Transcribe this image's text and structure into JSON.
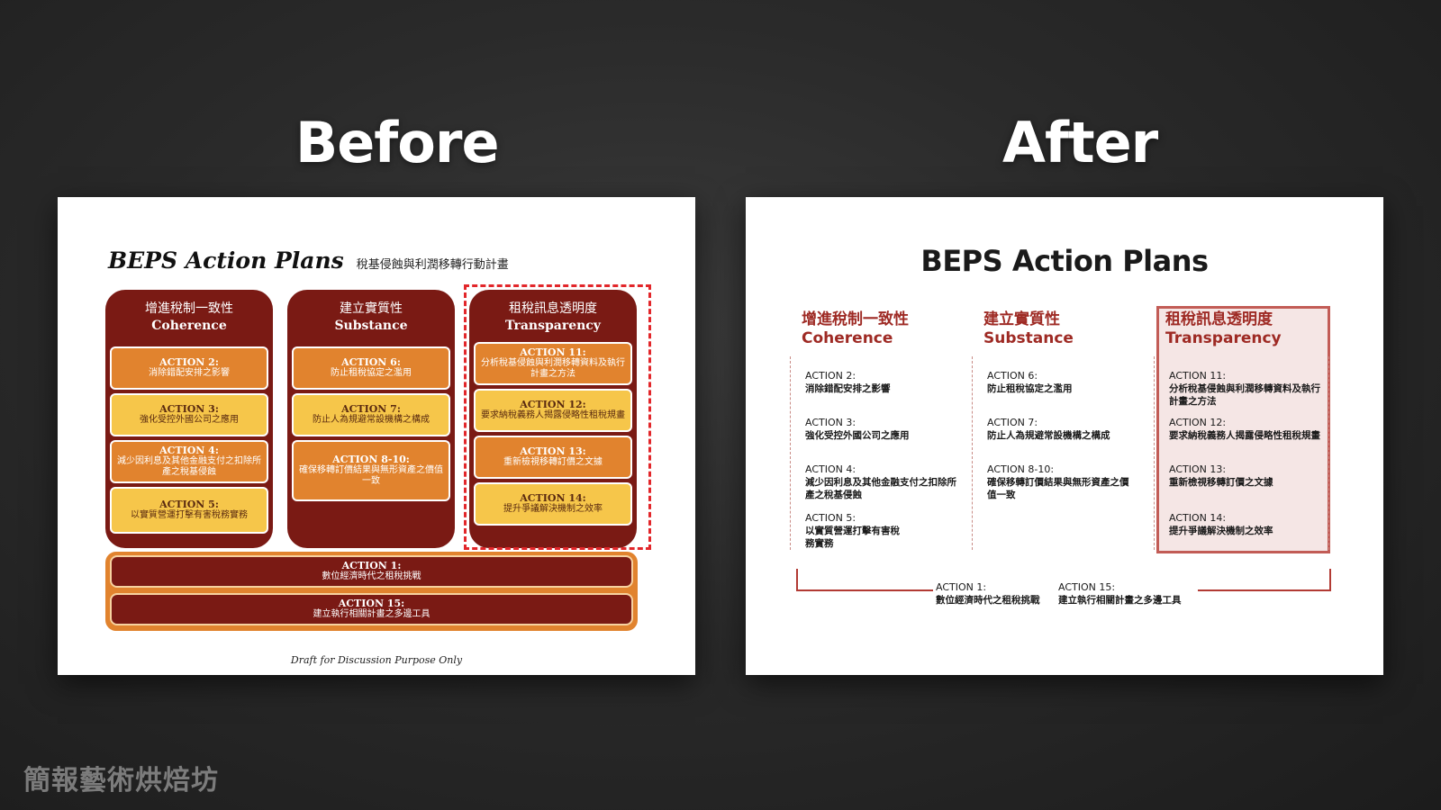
{
  "headings": {
    "before": "Before",
    "after": "After"
  },
  "before_slide": {
    "title": "BEPS Action Plans",
    "subtitle": "稅基侵蝕與利潤移轉行動計畫",
    "columns": [
      {
        "zh": "增進稅制一致性",
        "en": "Coherence",
        "actions": [
          {
            "title": "ACTION 2:",
            "desc": "消除錯配安排之影響",
            "style": "orange"
          },
          {
            "title": "ACTION 3:",
            "desc": "強化受控外國公司之應用",
            "style": "yellow"
          },
          {
            "title": "ACTION 4:",
            "desc": "減少因利息及其他金融支付之扣除所產之稅基侵蝕",
            "style": "orange"
          },
          {
            "title": "ACTION 5:",
            "desc": "以實質營運打擊有害稅務實務",
            "style": "yellow"
          }
        ]
      },
      {
        "zh": "建立實質性",
        "en": "Substance",
        "actions": [
          {
            "title": "ACTION 6:",
            "desc": "防止租稅協定之濫用",
            "style": "orange"
          },
          {
            "title": "ACTION 7:",
            "desc": "防止人為規避常設機構之構成",
            "style": "yellow"
          },
          {
            "title": "ACTION 8-10:",
            "desc": "確保移轉訂價結果與無形資產之價值一致",
            "style": "orange"
          }
        ]
      },
      {
        "zh": "租稅訊息透明度",
        "en": "Transparency",
        "actions": [
          {
            "title": "ACTION 11:",
            "desc": "分析稅基侵蝕與利潤移轉資料及執行計畫之方法",
            "style": "orange"
          },
          {
            "title": "ACTION 12:",
            "desc": "要求納稅義務人揭露侵略性租稅規畫",
            "style": "yellow"
          },
          {
            "title": "ACTION 13:",
            "desc": "重新檢視移轉訂價之文據",
            "style": "orange"
          },
          {
            "title": "ACTION 14:",
            "desc": "提升爭議解決機制之效率",
            "style": "yellow"
          }
        ]
      }
    ],
    "bottom": [
      {
        "title": "ACTION 1:",
        "desc": "數位經濟時代之租稅挑戰"
      },
      {
        "title": "ACTION 15:",
        "desc": "建立執行相關計畫之多邊工具"
      }
    ],
    "footer": "Draft for Discussion Purpose Only"
  },
  "after_slide": {
    "title": "BEPS Action Plans",
    "columns": [
      {
        "zh": "增進稅制一致性",
        "en": "Coherence",
        "actions": [
          {
            "title": "ACTION 2:",
            "desc": "消除錯配安排之影響"
          },
          {
            "title": "ACTION 3:",
            "desc": "強化受控外國公司之應用"
          },
          {
            "title": "ACTION 4:",
            "desc": "減少因利息及其他金融支付之扣除所產之稅基侵蝕"
          },
          {
            "title": "ACTION 5:",
            "desc": "以實質營運打擊有害稅務實務"
          }
        ]
      },
      {
        "zh": "建立實質性",
        "en": "Substance",
        "actions": [
          {
            "title": "ACTION 6:",
            "desc": "防止租稅協定之濫用"
          },
          {
            "title": "ACTION 7:",
            "desc": "防止人為規避常設機構之構成"
          },
          {
            "title": "ACTION 8-10:",
            "desc": "確保移轉訂價結果與無形資產之價值一致"
          }
        ]
      },
      {
        "zh": "租稅訊息透明度",
        "en": "Transparency",
        "actions": [
          {
            "title": "ACTION 11:",
            "desc": "分析稅基侵蝕與利潤移轉資料及執行計畫之方法"
          },
          {
            "title": "ACTION 12:",
            "desc": "要求納稅義務人揭露侵略性租稅規畫"
          },
          {
            "title": "ACTION 13:",
            "desc": "重新檢視移轉訂價之文據"
          },
          {
            "title": "ACTION 14:",
            "desc": "提升爭議解決機制之效率"
          }
        ]
      }
    ],
    "bottom": [
      {
        "title": "ACTION 1:",
        "desc": "數位經濟時代之租稅挑戰"
      },
      {
        "title": "ACTION 15:",
        "desc": "建立執行相關計畫之多邊工具"
      }
    ]
  },
  "watermark": "簡報藝術烘焙坊",
  "colors": {
    "maroon": "#7a1a14",
    "orange": "#e1832e",
    "yellow": "#f6c64a",
    "accent_red": "#9e2a24",
    "highlight_bg": "#f5e6e5"
  }
}
